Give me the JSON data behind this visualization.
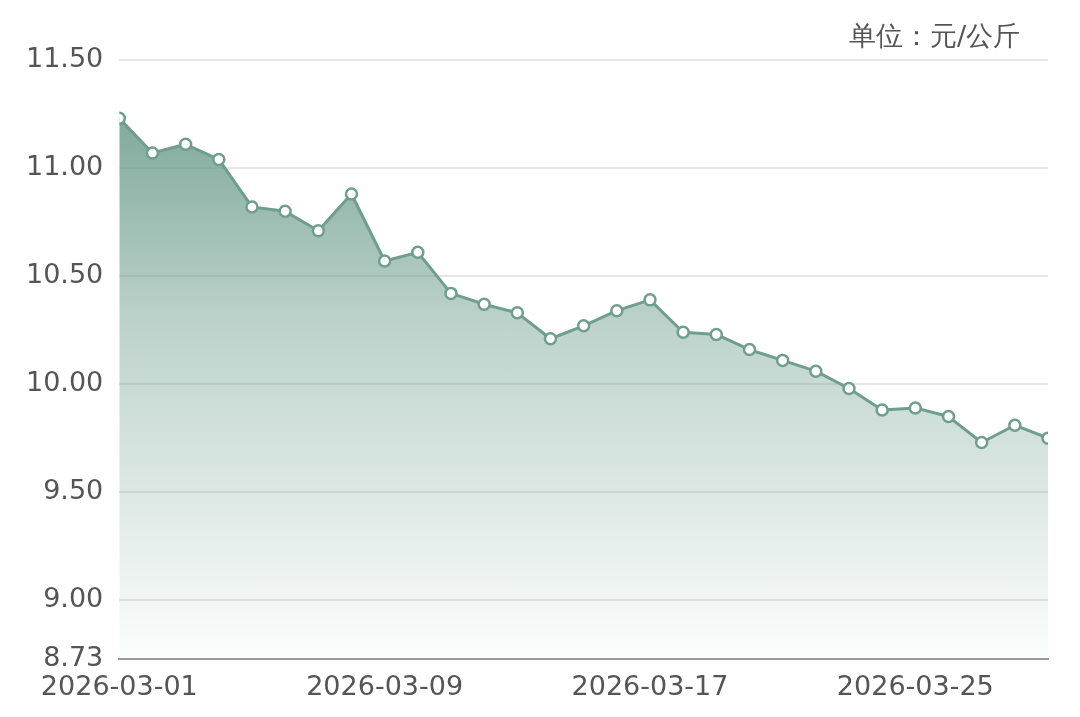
{
  "chart_data": {
    "type": "area",
    "annotations": [
      "单位：元/公斤"
    ],
    "x": [
      "2026-03-01",
      "2026-03-02",
      "2026-03-03",
      "2026-03-04",
      "2026-03-05",
      "2026-03-06",
      "2026-03-07",
      "2026-03-08",
      "2026-03-09",
      "2026-03-10",
      "2026-03-11",
      "2026-03-12",
      "2026-03-13",
      "2026-03-14",
      "2026-03-15",
      "2026-03-16",
      "2026-03-17",
      "2026-03-18",
      "2026-03-19",
      "2026-03-20",
      "2026-03-21",
      "2026-03-22",
      "2026-03-23",
      "2026-03-24",
      "2026-03-25",
      "2026-03-26",
      "2026-03-27",
      "2026-03-28",
      "2026-03-29"
    ],
    "series": [
      {
        "color": "#6f9e8f",
        "values": [
          11.23,
          11.07,
          11.11,
          11.04,
          10.82,
          10.8,
          10.71,
          10.88,
          10.57,
          10.61,
          10.42,
          10.37,
          10.33,
          10.21,
          10.27,
          10.34,
          10.39,
          10.24,
          10.23,
          10.16,
          10.11,
          10.06,
          9.98,
          9.88,
          9.89,
          9.85,
          9.73,
          9.81,
          9.75
        ]
      }
    ],
    "xlim": [
      "2026-03-01",
      "2026-03-29"
    ],
    "xticks": [
      "2026-03-01",
      "2026-03-09",
      "2026-03-17",
      "2026-03-25"
    ],
    "ylim": [
      8.73,
      11.5
    ],
    "yticks": [
      {
        "value": 8.73,
        "label": "8.73"
      },
      {
        "value": 9,
        "label": "9.00"
      },
      {
        "value": 9.5,
        "label": "9.50"
      },
      {
        "value": 10,
        "label": "10.00"
      },
      {
        "value": 10.5,
        "label": "10.50"
      },
      {
        "value": 11,
        "label": "11.00"
      },
      {
        "value": 11.5,
        "label": "11.50"
      }
    ],
    "grid": "y",
    "marker": "circle",
    "legend": false
  }
}
